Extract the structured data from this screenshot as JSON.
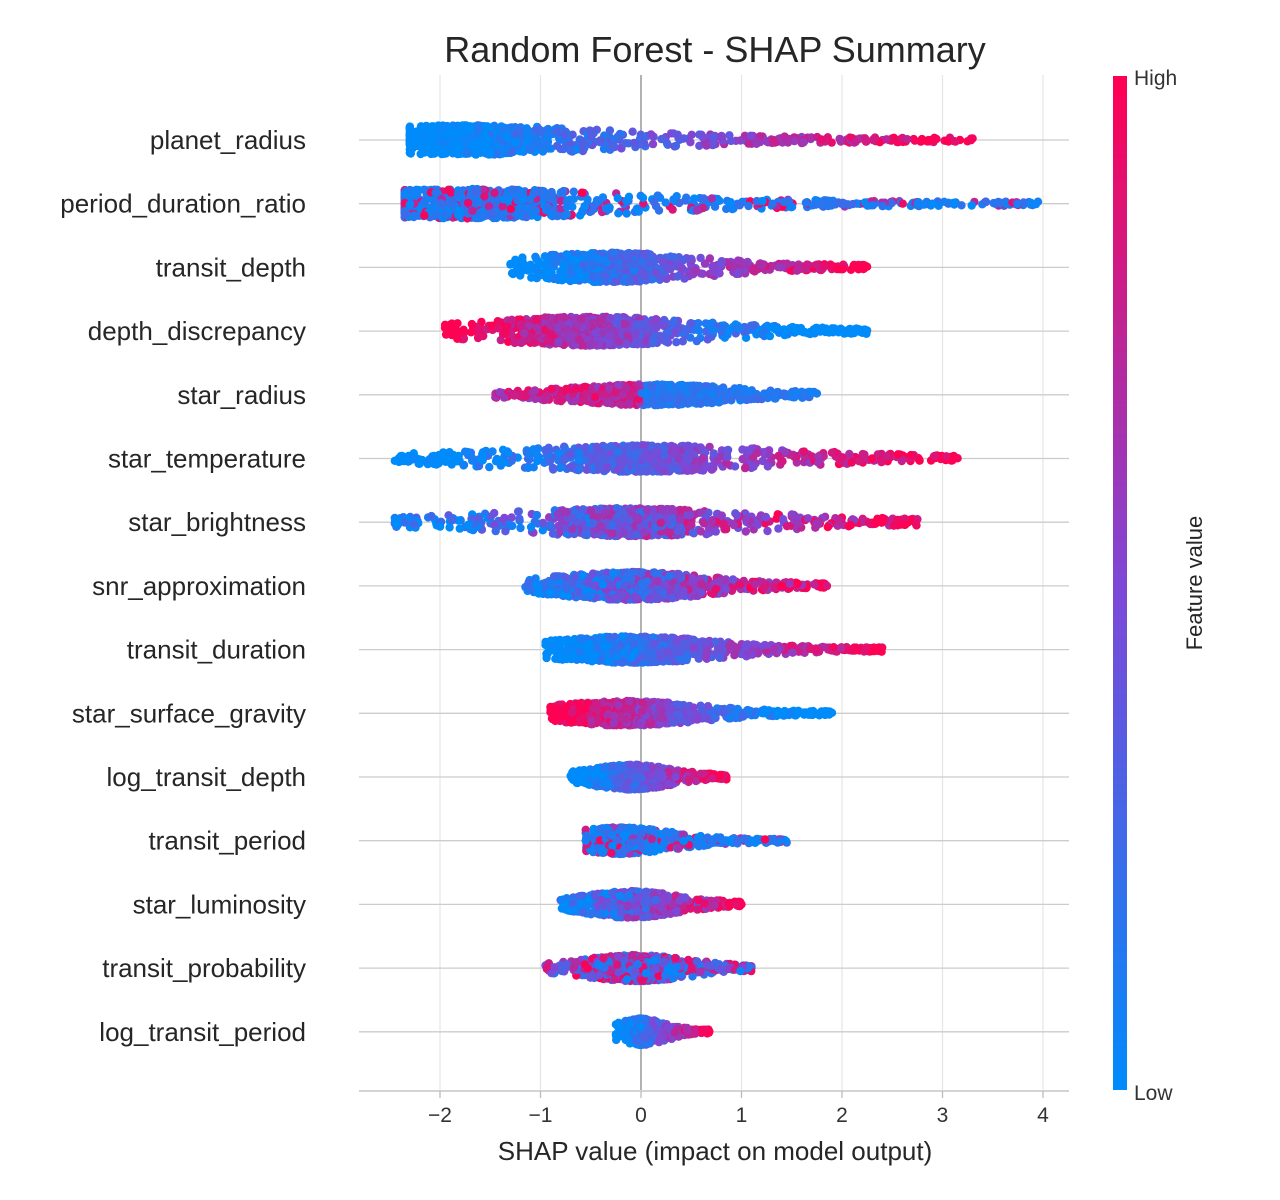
{
  "chart_data": {
    "type": "scatter",
    "title": "Random Forest - SHAP Summary",
    "xlabel": "SHAP value (impact on model output)",
    "xlim": [
      -2.8,
      4.28
    ],
    "xticks": [
      -2,
      -1,
      0,
      1,
      2,
      3,
      4
    ],
    "xtick_labels": [
      "−2",
      "−1",
      "0",
      "1",
      "2",
      "3",
      "4"
    ],
    "grid": "horizontal row lines and vertical tick lines",
    "zero_line": true,
    "colorbar": {
      "label": "Feature value",
      "high_label": "High",
      "low_label": "Low",
      "low_color": "#008bfb",
      "mid_color": "#7f47d6",
      "high_color": "#ff0052"
    },
    "features": [
      {
        "name": "planet_radius",
        "min": -2.3,
        "max": 3.3,
        "peak": -1.7,
        "spread": 0.55,
        "maxh": 0.42,
        "trend": "pos",
        "n": 1000
      },
      {
        "name": "period_duration_ratio",
        "min": -2.35,
        "max": 3.95,
        "peak": -1.7,
        "spread": 0.65,
        "maxh": 0.42,
        "trend": "mixed_low",
        "n": 1000
      },
      {
        "name": "transit_depth",
        "min": -1.3,
        "max": 2.25,
        "peak": -0.3,
        "spread": 0.35,
        "maxh": 0.42,
        "trend": "pos",
        "n": 850
      },
      {
        "name": "depth_discrepancy",
        "min": -1.95,
        "max": 2.25,
        "peak": -0.5,
        "spread": 0.5,
        "maxh": 0.42,
        "trend": "neg",
        "n": 1000
      },
      {
        "name": "star_radius",
        "min": -1.45,
        "max": 1.75,
        "peak": 0.1,
        "spread": 0.6,
        "maxh": 0.3,
        "trend": "neg_strong",
        "n": 850
      },
      {
        "name": "star_temperature",
        "min": -2.45,
        "max": 3.15,
        "peak": 0.0,
        "spread": 0.45,
        "maxh": 0.38,
        "trend": "pos",
        "n": 1000
      },
      {
        "name": "star_brightness",
        "min": -2.45,
        "max": 2.75,
        "peak": -0.15,
        "spread": 0.45,
        "maxh": 0.4,
        "trend": "pos_mixed",
        "n": 1000
      },
      {
        "name": "snr_approximation",
        "min": -1.15,
        "max": 1.85,
        "peak": -0.1,
        "spread": 0.45,
        "maxh": 0.4,
        "trend": "pos_mixed",
        "n": 950
      },
      {
        "name": "transit_duration",
        "min": -0.95,
        "max": 2.4,
        "peak": -0.1,
        "spread": 0.45,
        "maxh": 0.38,
        "trend": "pos",
        "n": 950
      },
      {
        "name": "star_surface_gravity",
        "min": -0.9,
        "max": 1.9,
        "peak": -0.15,
        "spread": 0.4,
        "maxh": 0.35,
        "trend": "neg",
        "n": 950
      },
      {
        "name": "log_transit_depth",
        "min": -0.7,
        "max": 0.85,
        "peak": -0.1,
        "spread": 0.3,
        "maxh": 0.36,
        "trend": "pos",
        "n": 750
      },
      {
        "name": "transit_period",
        "min": -0.55,
        "max": 1.45,
        "peak": -0.2,
        "spread": 0.2,
        "maxh": 0.38,
        "trend": "mixed_low",
        "n": 700
      },
      {
        "name": "star_luminosity",
        "min": -0.8,
        "max": 1.0,
        "peak": -0.1,
        "spread": 0.3,
        "maxh": 0.38,
        "trend": "pos_mixed",
        "n": 800
      },
      {
        "name": "transit_probability",
        "min": -0.95,
        "max": 1.1,
        "peak": -0.05,
        "spread": 0.3,
        "maxh": 0.38,
        "trend": "mixed",
        "n": 800
      },
      {
        "name": "log_transit_period",
        "min": -0.25,
        "max": 0.68,
        "peak": 0.0,
        "spread": 0.05,
        "maxh": 0.38,
        "trend": "pos",
        "n": 500
      }
    ]
  }
}
